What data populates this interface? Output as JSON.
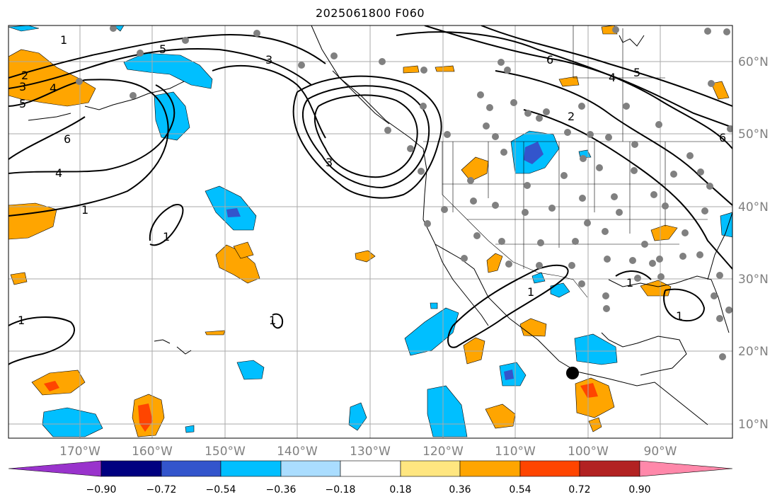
{
  "title": "2025061800 F060",
  "lon_labels": [
    "170°W",
    "160°W",
    "150°W",
    "140°W",
    "130°W",
    "120°W",
    "110°W",
    "100°W",
    "90°W"
  ],
  "lat_labels": [
    "60°N",
    "50°N",
    "40°N",
    "30°N",
    "20°N",
    "10°N"
  ],
  "colorbar": {
    "tick_labels": [
      "−0.90",
      "−0.72",
      "−0.54",
      "−0.36",
      "−0.18",
      "0.18",
      "0.36",
      "0.54",
      "0.72",
      "0.90"
    ],
    "colors": [
      "#9933cc",
      "#000080",
      "#3355cc",
      "#00bfff",
      "#aaddff",
      "#ffffff",
      "#ffe680",
      "#ffa500",
      "#ff4500",
      "#b22222",
      "#ff88aa"
    ]
  },
  "contour_labels": [
    "1",
    "2",
    "3",
    "4",
    "5",
    "6"
  ],
  "colors": {
    "grid": "#aaaaaa",
    "axis_label": "#808080",
    "coast": "#000000",
    "station_dot": "#808080",
    "marker": "#000000"
  }
}
